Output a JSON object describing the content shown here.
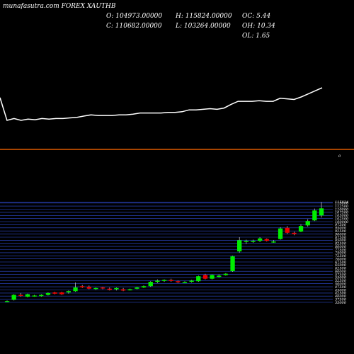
{
  "caption": "munafasutra.com FOREX XAUTHB",
  "ohlc": {
    "open": "O: 104973.00000",
    "high": "H: 115824.00000",
    "close": "C: 110682.00000",
    "low": "L: 103264.00000",
    "oc": "OC: 5.44",
    "oh": "OH: 10.34",
    "ol": "OL: 1.65"
  },
  "colors": {
    "background": "#000000",
    "up": "#00ee00",
    "down": "#ee0000",
    "line": "#ffffff",
    "grid": "#3a5cff",
    "separator": "#e05a00"
  },
  "volume_marker": "0",
  "chart_data": [
    {
      "type": "line",
      "title": "",
      "grid": false,
      "x": [
        1,
        2,
        3,
        4,
        5,
        6,
        7,
        8,
        9,
        10,
        11,
        12,
        13,
        14,
        15,
        16,
        17,
        18,
        19,
        20,
        21,
        22,
        23,
        24,
        25,
        26,
        27,
        28,
        29,
        30,
        31,
        32,
        33,
        34,
        35,
        36,
        37,
        38,
        39,
        40,
        41,
        42,
        43,
        44,
        45,
        46,
        47
      ],
      "values": [
        44,
        7,
        10,
        7,
        9,
        8,
        10,
        9,
        10,
        10,
        11,
        12,
        14,
        16,
        15,
        15,
        15,
        16,
        16,
        17,
        19,
        19,
        19,
        19,
        20,
        20,
        21,
        24,
        24,
        25,
        26,
        25,
        27,
        33,
        38,
        38,
        38,
        39,
        38,
        38,
        43,
        42,
        41,
        45,
        50,
        55,
        60
      ]
    },
    {
      "type": "candlestick",
      "title": "",
      "grid": true,
      "y_ticks": [
        35000,
        37500,
        40000,
        42500,
        45000,
        47500,
        50000,
        52500,
        55000,
        57500,
        60000,
        62500,
        65000,
        67500,
        70000,
        72500,
        75000,
        77500,
        80000,
        82500,
        85000,
        87500,
        90000,
        92500,
        95000,
        97500,
        100000,
        102500,
        105000,
        107500,
        110000,
        112500,
        115000,
        115824
      ],
      "ylim": [
        35000,
        116000
      ],
      "candles": [
        {
          "o": 35500,
          "h": 36500,
          "l": 35000,
          "c": 36000
        },
        {
          "o": 37000,
          "h": 41500,
          "l": 36500,
          "c": 41000
        },
        {
          "o": 41000,
          "h": 42500,
          "l": 39500,
          "c": 40500
        },
        {
          "o": 39500,
          "h": 42000,
          "l": 39000,
          "c": 41500
        },
        {
          "o": 40000,
          "h": 41000,
          "l": 39500,
          "c": 40500
        },
        {
          "o": 40000,
          "h": 41500,
          "l": 39500,
          "c": 41000
        },
        {
          "o": 41000,
          "h": 43000,
          "l": 40500,
          "c": 42500
        },
        {
          "o": 43000,
          "h": 43500,
          "l": 41500,
          "c": 42000
        },
        {
          "o": 43000,
          "h": 43500,
          "l": 41000,
          "c": 41500
        },
        {
          "o": 43000,
          "h": 44500,
          "l": 42000,
          "c": 44000
        },
        {
          "o": 44000,
          "h": 51000,
          "l": 43500,
          "c": 47000
        },
        {
          "o": 48000,
          "h": 49000,
          "l": 46500,
          "c": 47500
        },
        {
          "o": 47500,
          "h": 48500,
          "l": 45500,
          "c": 46000
        },
        {
          "o": 46000,
          "h": 47000,
          "l": 45000,
          "c": 46500
        },
        {
          "o": 47000,
          "h": 47500,
          "l": 45500,
          "c": 46500
        },
        {
          "o": 46000,
          "h": 47000,
          "l": 44500,
          "c": 45000
        },
        {
          "o": 45500,
          "h": 47000,
          "l": 44500,
          "c": 46500
        },
        {
          "o": 45500,
          "h": 46500,
          "l": 44000,
          "c": 44500
        },
        {
          "o": 45000,
          "h": 46000,
          "l": 44500,
          "c": 45500
        },
        {
          "o": 46000,
          "h": 47500,
          "l": 45500,
          "c": 47000
        },
        {
          "o": 47000,
          "h": 48500,
          "l": 46500,
          "c": 48000
        },
        {
          "o": 48000,
          "h": 52000,
          "l": 47500,
          "c": 51500
        },
        {
          "o": 51500,
          "h": 53500,
          "l": 50500,
          "c": 52500
        },
        {
          "o": 52500,
          "h": 53500,
          "l": 51500,
          "c": 53000
        },
        {
          "o": 53000,
          "h": 54000,
          "l": 51500,
          "c": 52500
        },
        {
          "o": 52000,
          "h": 52500,
          "l": 50500,
          "c": 51500
        },
        {
          "o": 51000,
          "h": 52000,
          "l": 50500,
          "c": 51500
        },
        {
          "o": 51500,
          "h": 53000,
          "l": 51000,
          "c": 52500
        },
        {
          "o": 52000,
          "h": 56500,
          "l": 51500,
          "c": 56000
        },
        {
          "o": 57000,
          "h": 58000,
          "l": 53500,
          "c": 54000
        },
        {
          "o": 54000,
          "h": 57500,
          "l": 53500,
          "c": 57000
        },
        {
          "o": 55500,
          "h": 57500,
          "l": 55000,
          "c": 56500
        },
        {
          "o": 57000,
          "h": 58500,
          "l": 56500,
          "c": 58000
        },
        {
          "o": 60000,
          "h": 72500,
          "l": 59500,
          "c": 72000
        },
        {
          "o": 76000,
          "h": 87500,
          "l": 75000,
          "c": 85000
        },
        {
          "o": 84000,
          "h": 85500,
          "l": 82000,
          "c": 84500
        },
        {
          "o": 84000,
          "h": 85500,
          "l": 83000,
          "c": 84500
        },
        {
          "o": 84500,
          "h": 87500,
          "l": 83500,
          "c": 86500
        },
        {
          "o": 86000,
          "h": 86500,
          "l": 84000,
          "c": 84500
        },
        {
          "o": 84000,
          "h": 85000,
          "l": 83000,
          "c": 84000
        },
        {
          "o": 86000,
          "h": 95500,
          "l": 85500,
          "c": 94500
        },
        {
          "o": 95000,
          "h": 96500,
          "l": 90000,
          "c": 91000
        },
        {
          "o": 91000,
          "h": 92000,
          "l": 89000,
          "c": 90000
        },
        {
          "o": 92000,
          "h": 98000,
          "l": 91500,
          "c": 96500
        },
        {
          "o": 97000,
          "h": 102000,
          "l": 96000,
          "c": 100500
        },
        {
          "o": 101000,
          "h": 110500,
          "l": 100500,
          "c": 109000
        },
        {
          "o": 104973,
          "h": 115824,
          "l": 103264,
          "c": 110682
        }
      ]
    }
  ]
}
